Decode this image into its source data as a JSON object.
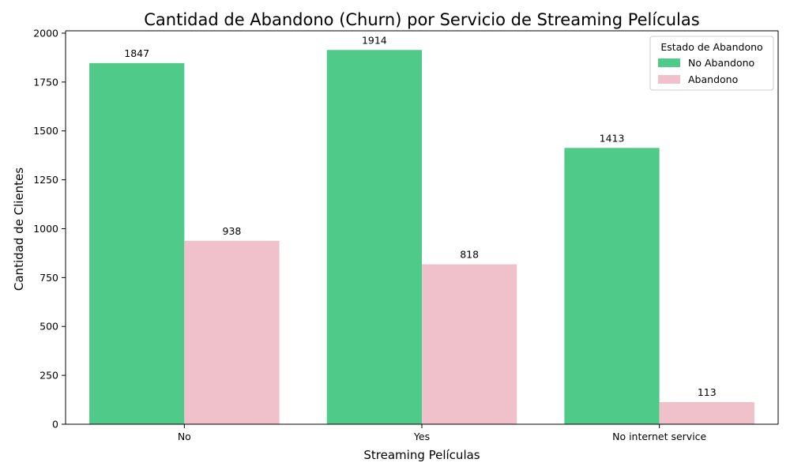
{
  "chart_data": {
    "type": "bar",
    "title": "Cantidad de Abandono (Churn) por Servicio de Streaming Películas",
    "xlabel": "Streaming Películas",
    "ylabel": "Cantidad de Clientes",
    "categories": [
      "No",
      "Yes",
      "No internet service"
    ],
    "series": [
      {
        "name": "No Abandono",
        "values": [
          1847,
          1914,
          1413
        ],
        "color": "#50CA89"
      },
      {
        "name": "Abandono",
        "values": [
          938,
          818,
          113
        ],
        "color": "#F0C1CB"
      }
    ],
    "ylim": [
      0,
      2012
    ],
    "yticks": [
      0,
      250,
      500,
      750,
      1000,
      1250,
      1500,
      1750,
      2000
    ],
    "grid": false,
    "legend": {
      "title": "Estado de Abandono",
      "position": "top-right"
    }
  }
}
